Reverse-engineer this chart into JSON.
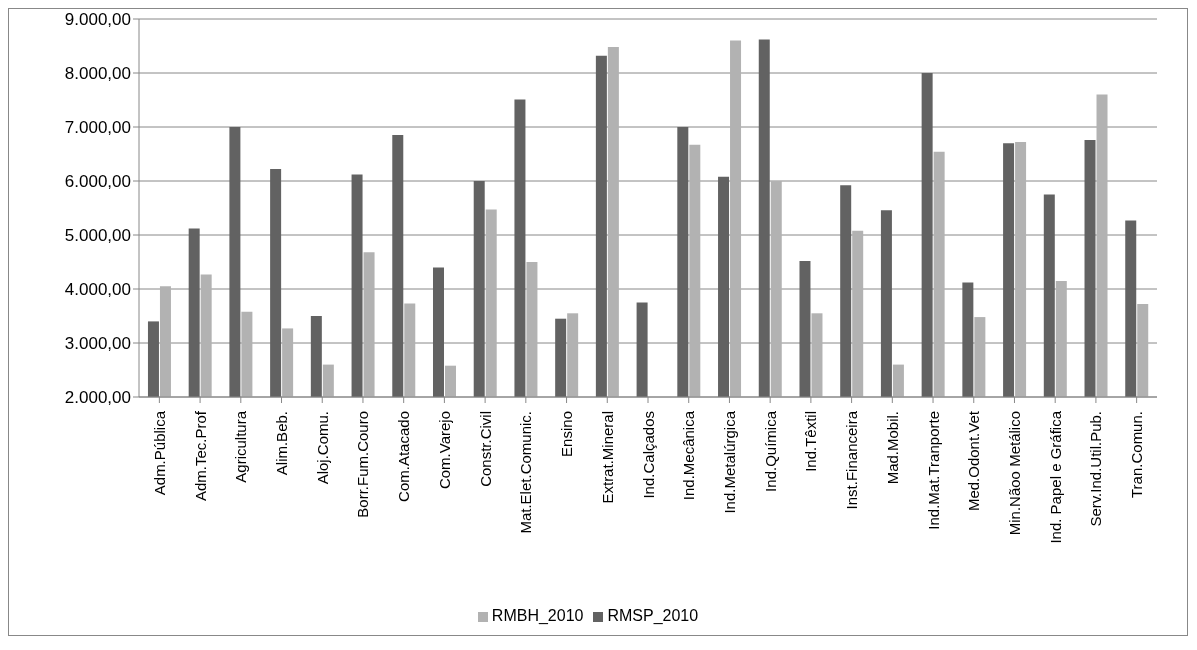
{
  "chart_data": {
    "type": "bar",
    "categories": [
      "Adm.Pública",
      "Adm.Tec.Prof",
      "Agricultura",
      "Alim.Beb.",
      "Aloj.Comu.",
      "Borr.Fum.Couro",
      "Com.Atacado",
      "Com.Varejo",
      "Constr.Civil",
      "Mat.Elet.Comunic.",
      "Ensino",
      "Extrat.Mineral",
      "Ind.Calçados",
      "Ind.Mecânica",
      "Ind.Metalúrgica",
      "Ind.Química",
      "Ind.Têxtil",
      "Inst.Financeira",
      "Mad.Mobil.",
      "Ind.Mat.Tranporte",
      "Med.Odont.Vet",
      "Min.Nãoo Metálico",
      "Ind. Papel e Gráfica",
      "Serv.Ind.Util.Pub.",
      "Tran.Comun."
    ],
    "series": [
      {
        "name": "RMSP_2010",
        "color": "#626262",
        "values": [
          3400,
          5120,
          7000,
          6220,
          3500,
          6120,
          6850,
          4400,
          6000,
          7510,
          3450,
          8320,
          3750,
          7000,
          6080,
          8620,
          4520,
          5920,
          5460,
          8000,
          4120,
          6700,
          5750,
          6760,
          5270
        ]
      },
      {
        "name": "RMBH_2010",
        "color": "#b2b2b2",
        "values": [
          4050,
          4270,
          3580,
          3270,
          2600,
          4680,
          3730,
          2580,
          5470,
          4500,
          3550,
          8480,
          null,
          6670,
          8600,
          6000,
          3550,
          5080,
          2600,
          6540,
          3480,
          6720,
          4150,
          7600,
          3720
        ]
      }
    ],
    "ylim": [
      2000,
      9000
    ],
    "yticks": [
      {
        "value": 2000,
        "label": "2.000,00"
      },
      {
        "value": 3000,
        "label": "3.000,00"
      },
      {
        "value": 4000,
        "label": "4.000,00"
      },
      {
        "value": 5000,
        "label": "5.000,00"
      },
      {
        "value": 6000,
        "label": "6.000,00"
      },
      {
        "value": 7000,
        "label": "7.000,00"
      },
      {
        "value": 8000,
        "label": "8.000,00"
      },
      {
        "value": 9000,
        "label": "9.000,00"
      }
    ],
    "grid": "y",
    "legend": "bottom"
  }
}
